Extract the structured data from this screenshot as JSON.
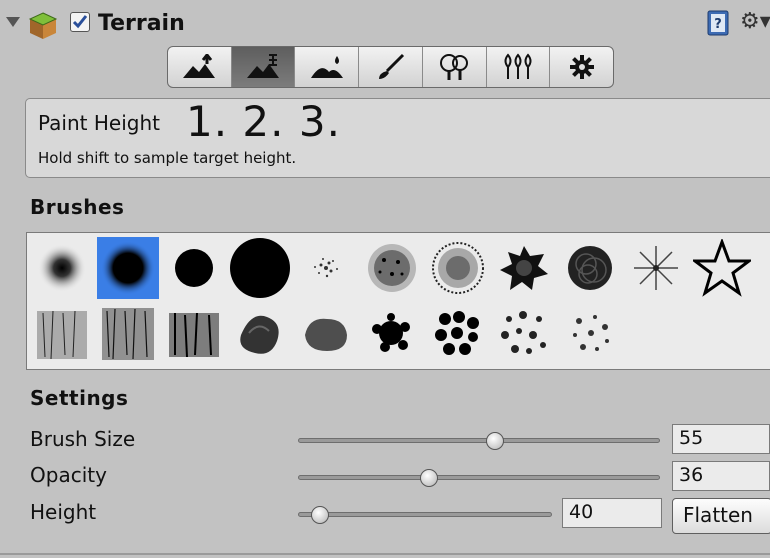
{
  "header": {
    "title": "Terrain",
    "enabled": true,
    "icons": [
      "foldout-arrow-icon",
      "terrain-cube-icon",
      "help-book-icon",
      "settings-gear-icon"
    ]
  },
  "toolbar": {
    "tools": [
      {
        "name": "raise-lower-terrain-icon",
        "active": false
      },
      {
        "name": "paint-height-icon",
        "active": true
      },
      {
        "name": "smooth-height-icon",
        "active": false
      },
      {
        "name": "paint-texture-icon",
        "active": false
      },
      {
        "name": "place-trees-icon",
        "active": false
      },
      {
        "name": "paint-details-icon",
        "active": false
      },
      {
        "name": "terrain-settings-icon",
        "active": false
      }
    ]
  },
  "info": {
    "tool_name": "Paint Height",
    "steps": "1. 2. 3.",
    "hint": "Hold shift to sample target height."
  },
  "brushes": {
    "label": "Brushes",
    "selected_index": 1,
    "count": 21
  },
  "settings": {
    "label": "Settings",
    "brush_size": {
      "label": "Brush Size",
      "value": "55",
      "level": 0.55
    },
    "opacity": {
      "label": "Opacity",
      "value": "36",
      "level": 0.36
    },
    "height": {
      "label": "Height",
      "value": "40",
      "level": 0.08,
      "button": "Flatten"
    }
  },
  "colors": {
    "selection": "#3a7ee6",
    "panel": "#c2c2c2"
  }
}
